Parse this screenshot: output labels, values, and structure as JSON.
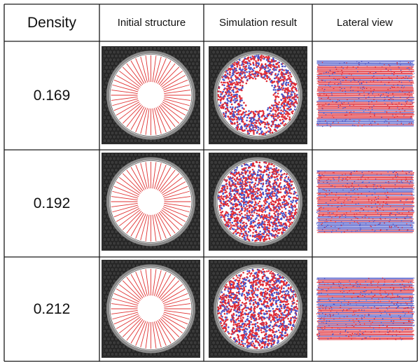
{
  "table": {
    "headers": {
      "density": "Density",
      "initial": "Initial structure",
      "simulation": "Simulation result",
      "lateral": "Lateral view"
    },
    "rows": [
      {
        "density": "0.169",
        "hole": "large"
      },
      {
        "density": "0.192",
        "hole": "none"
      },
      {
        "density": "0.212",
        "hole": "none"
      }
    ]
  },
  "colors": {
    "border": "#1a1a1a",
    "background_particles": "#3a3a3a",
    "ring": "#8a8a8a",
    "spokes": "#e03030",
    "particle_red": "#e02c36",
    "particle_blue": "#4a55c8"
  }
}
